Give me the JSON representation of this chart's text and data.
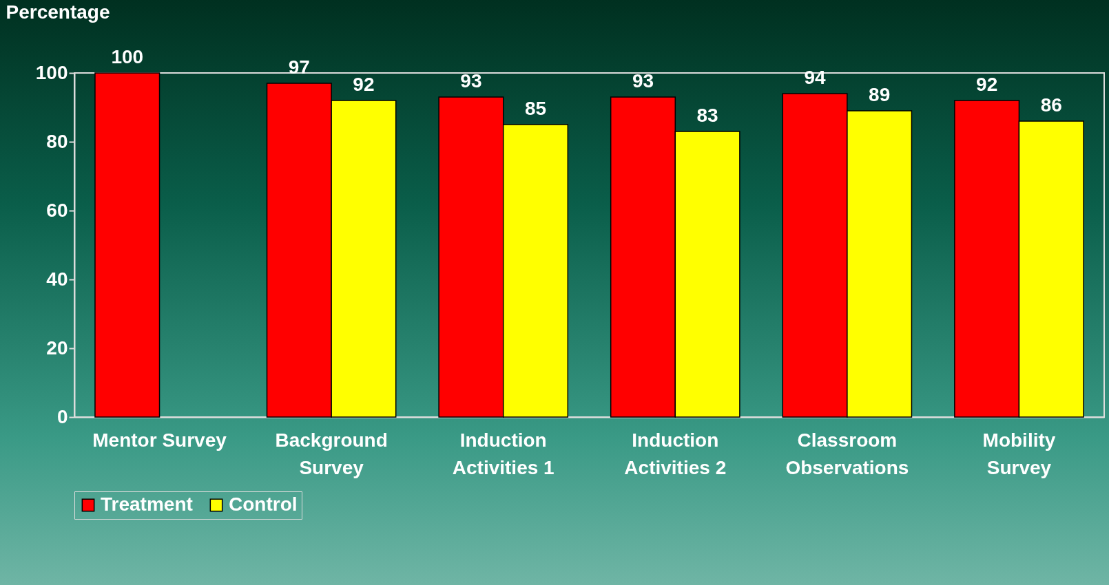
{
  "chart_data": {
    "type": "bar",
    "ylabel": "Percentage",
    "categories": [
      "Mentor Survey",
      "Background Survey",
      "Induction Activities 1",
      "Induction Activities 2",
      "Classroom Observations",
      "Mobility Survey"
    ],
    "series": [
      {
        "name": "Treatment",
        "color": "#ff0000",
        "values": [
          100,
          97,
          93,
          93,
          94,
          92
        ]
      },
      {
        "name": "Control",
        "color": "#ffff00",
        "values": [
          null,
          92,
          85,
          83,
          89,
          86
        ]
      }
    ],
    "ylim": [
      0,
      100
    ],
    "yticks": [
      0,
      20,
      40,
      60,
      80,
      100
    ],
    "data_labels": true,
    "grid": false,
    "legend": "bottom"
  }
}
